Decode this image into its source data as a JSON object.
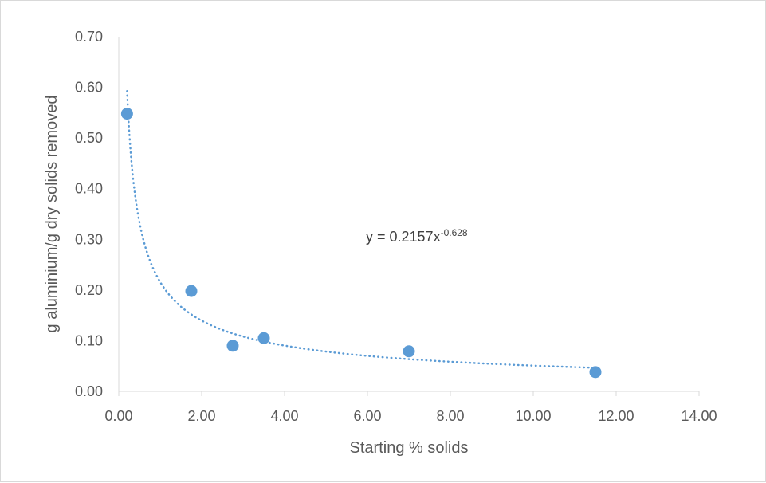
{
  "chart_data": {
    "type": "scatter",
    "title": "",
    "xlabel": "Starting % solids",
    "ylabel": "g aluminium/g dry solids removed",
    "xlim": [
      0,
      14
    ],
    "ylim": [
      0,
      0.7
    ],
    "x_ticks": [
      "0.00",
      "2.00",
      "4.00",
      "6.00",
      "8.00",
      "10.00",
      "12.00",
      "14.00"
    ],
    "y_ticks": [
      "0.00",
      "0.10",
      "0.20",
      "0.30",
      "0.40",
      "0.50",
      "0.60",
      "0.70"
    ],
    "grid": false,
    "legend": "none",
    "series": [
      {
        "x": [
          0.2,
          1.75,
          2.75,
          3.5,
          7.0,
          11.5
        ],
        "y": [
          0.548,
          0.198,
          0.09,
          0.105,
          0.079,
          0.038
        ],
        "color": "#5b9bd5"
      }
    ],
    "trendline": {
      "type": "power",
      "a": 0.2157,
      "b": -0.628,
      "x_range": [
        0.2,
        11.5
      ],
      "color": "#5b9bd5",
      "style": "dotted",
      "equation_label": {
        "prefix": "y = 0.2157x",
        "exponent": "-0.628"
      }
    }
  }
}
